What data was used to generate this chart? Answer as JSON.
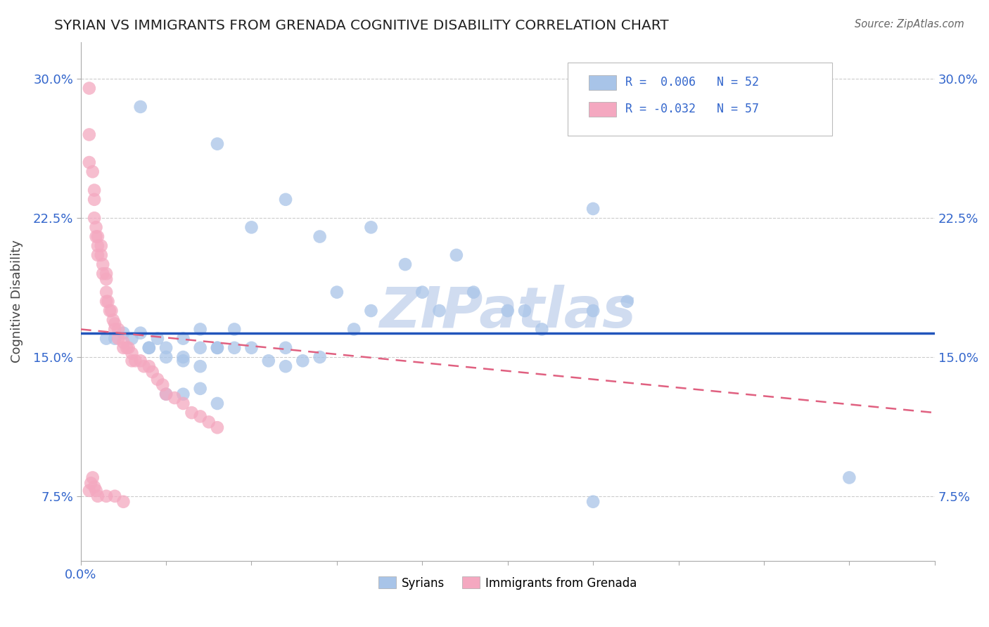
{
  "title": "SYRIAN VS IMMIGRANTS FROM GRENADA COGNITIVE DISABILITY CORRELATION CHART",
  "source": "Source: ZipAtlas.com",
  "ylabel": "Cognitive Disability",
  "xlim": [
    0.0,
    0.5
  ],
  "ylim": [
    0.04,
    0.32
  ],
  "xticks": [
    0.0,
    0.05,
    0.1,
    0.15,
    0.2,
    0.25,
    0.3,
    0.35,
    0.4,
    0.45,
    0.5
  ],
  "xticklabels_show": {
    "0.0": "0.0%"
  },
  "yticks": [
    0.075,
    0.15,
    0.225,
    0.3
  ],
  "yticklabels": [
    "7.5%",
    "15.0%",
    "22.5%",
    "30.0%"
  ],
  "legend_r_syrian": " 0.006",
  "legend_n_syrian": "52",
  "legend_r_grenada": "-0.032",
  "legend_n_grenada": "57",
  "blue_color": "#A8C4E8",
  "pink_color": "#F4A8C0",
  "blue_line_color": "#2255BB",
  "pink_line_color": "#E06080",
  "watermark": "ZIPatlas",
  "watermark_color": "#D0DCF0",
  "background_color": "#ffffff",
  "blue_line_y0": 0.163,
  "blue_line_y1": 0.163,
  "pink_line_y0": 0.165,
  "pink_line_y1": 0.12,
  "syrians_x": [
    0.035,
    0.08,
    0.12,
    0.1,
    0.17,
    0.14,
    0.19,
    0.22,
    0.2,
    0.17,
    0.15,
    0.21,
    0.23,
    0.25,
    0.26,
    0.3,
    0.27,
    0.16,
    0.12,
    0.09,
    0.07,
    0.06,
    0.04,
    0.03,
    0.02,
    0.015,
    0.025,
    0.035,
    0.045,
    0.05,
    0.06,
    0.07,
    0.08,
    0.04,
    0.05,
    0.06,
    0.07,
    0.08,
    0.09,
    0.1,
    0.11,
    0.12,
    0.13,
    0.14,
    0.05,
    0.06,
    0.07,
    0.08,
    0.3,
    0.32,
    0.45,
    0.3
  ],
  "syrians_y": [
    0.285,
    0.265,
    0.235,
    0.22,
    0.22,
    0.215,
    0.2,
    0.205,
    0.185,
    0.175,
    0.185,
    0.175,
    0.185,
    0.175,
    0.175,
    0.175,
    0.165,
    0.165,
    0.155,
    0.165,
    0.165,
    0.16,
    0.155,
    0.16,
    0.16,
    0.16,
    0.163,
    0.163,
    0.16,
    0.155,
    0.15,
    0.145,
    0.155,
    0.155,
    0.15,
    0.148,
    0.155,
    0.155,
    0.155,
    0.155,
    0.148,
    0.145,
    0.148,
    0.15,
    0.13,
    0.13,
    0.133,
    0.125,
    0.23,
    0.18,
    0.085,
    0.072
  ],
  "grenada_x": [
    0.005,
    0.005,
    0.005,
    0.007,
    0.008,
    0.008,
    0.008,
    0.009,
    0.009,
    0.01,
    0.01,
    0.01,
    0.012,
    0.012,
    0.013,
    0.013,
    0.015,
    0.015,
    0.015,
    0.015,
    0.016,
    0.017,
    0.018,
    0.019,
    0.02,
    0.02,
    0.022,
    0.022,
    0.025,
    0.025,
    0.027,
    0.028,
    0.03,
    0.03,
    0.032,
    0.035,
    0.037,
    0.04,
    0.042,
    0.045,
    0.048,
    0.05,
    0.055,
    0.06,
    0.065,
    0.07,
    0.075,
    0.08,
    0.005,
    0.006,
    0.007,
    0.008,
    0.009,
    0.01,
    0.015,
    0.02,
    0.025
  ],
  "grenada_y": [
    0.295,
    0.27,
    0.255,
    0.25,
    0.24,
    0.235,
    0.225,
    0.22,
    0.215,
    0.215,
    0.21,
    0.205,
    0.21,
    0.205,
    0.2,
    0.195,
    0.195,
    0.192,
    0.185,
    0.18,
    0.18,
    0.175,
    0.175,
    0.17,
    0.168,
    0.165,
    0.165,
    0.16,
    0.158,
    0.155,
    0.155,
    0.155,
    0.152,
    0.148,
    0.148,
    0.148,
    0.145,
    0.145,
    0.142,
    0.138,
    0.135,
    0.13,
    0.128,
    0.125,
    0.12,
    0.118,
    0.115,
    0.112,
    0.078,
    0.082,
    0.085,
    0.08,
    0.078,
    0.075,
    0.075,
    0.075,
    0.072
  ]
}
